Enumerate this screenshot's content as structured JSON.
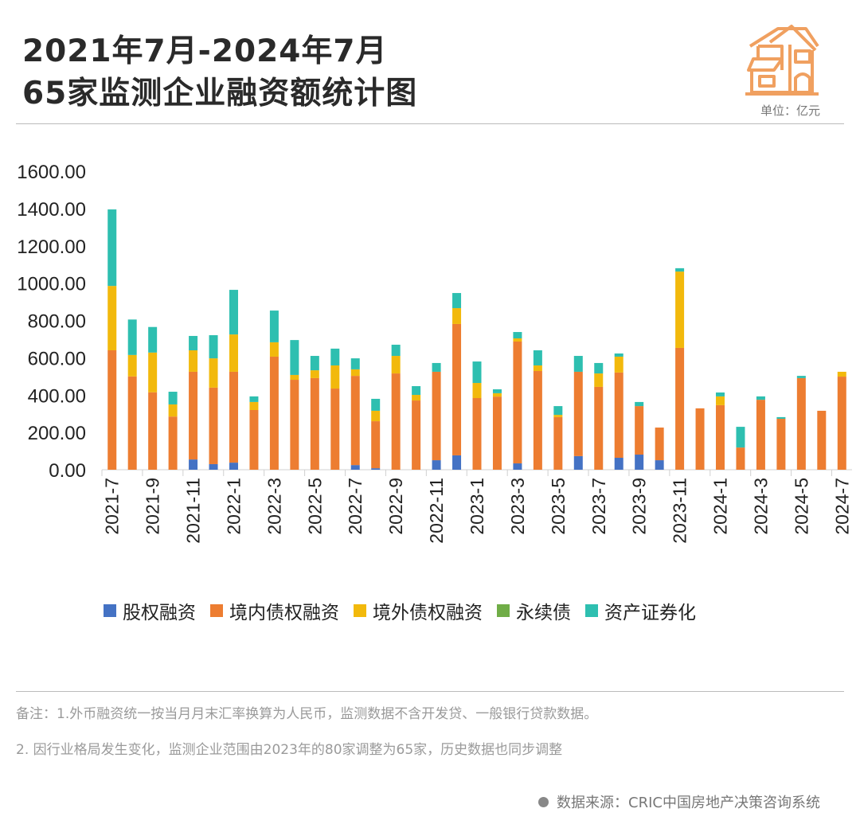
{
  "header": {
    "title_line1": "2021年7月-2024年7月",
    "title_line2": "65家监测企业融资额统计图",
    "unit": "单位：亿元",
    "logo_icon": "house-icon"
  },
  "notes": {
    "line1": "备注：1.外币融资统一按当月月末汇率换算为人民币，监测数据不含开发贷、一般银行贷款数据。",
    "line2": "2. 因行业格局发生变化，监测企业范围由2023年的80家调整为65家，历史数据也同步调整",
    "source": "数据来源：CRIC中国房地产决策咨询系统"
  },
  "chart_data": {
    "type": "bar",
    "stacked": true,
    "title": "2021年7月-2024年7月 65家监测企业融资额统计图",
    "xlabel": "",
    "ylabel": "",
    "unit": "亿元",
    "ylim": [
      0,
      1600
    ],
    "yticks": [
      "0.00",
      "200.00",
      "400.00",
      "600.00",
      "800.00",
      "1000.00",
      "1200.00",
      "1400.00",
      "1600.00"
    ],
    "grid": false,
    "legend_position": "bottom",
    "categories": [
      "2021-7",
      "2021-8",
      "2021-9",
      "2021-10",
      "2021-11",
      "2021-12",
      "2022-1",
      "2022-2",
      "2022-3",
      "2022-4",
      "2022-5",
      "2022-6",
      "2022-7",
      "2022-8",
      "2022-9",
      "2022-10",
      "2022-11",
      "2022-12",
      "2023-1",
      "2023-2",
      "2023-3",
      "2023-4",
      "2023-5",
      "2023-6",
      "2023-7",
      "2023-8",
      "2023-9",
      "2023-10",
      "2023-11",
      "2023-12",
      "2024-1",
      "2024-2",
      "2024-3",
      "2024-4",
      "2024-5",
      "2024-6",
      "2024-7"
    ],
    "xtick_labels": [
      "2021-7",
      "2021-9",
      "2021-11",
      "2022-1",
      "2022-3",
      "2022-5",
      "2022-7",
      "2022-9",
      "2022-11",
      "2023-1",
      "2023-3",
      "2023-5",
      "2023-7",
      "2023-9",
      "2023-11",
      "2024-1",
      "2024-3",
      "2024-5",
      "2024-7"
    ],
    "series": [
      {
        "name": "股权融资",
        "color": "#4472c4",
        "values": [
          0,
          0,
          0,
          0,
          55,
          30,
          38,
          0,
          0,
          0,
          0,
          0,
          25,
          8,
          0,
          0,
          51,
          77,
          0,
          0,
          34,
          0,
          0,
          73,
          0,
          64,
          81,
          51,
          0,
          0,
          0,
          0,
          0,
          0,
          0,
          0,
          0
        ]
      },
      {
        "name": "境内债权融资",
        "color": "#ed7d31",
        "values": [
          640,
          500,
          415,
          285,
          470,
          410,
          487,
          320,
          606,
          482,
          491,
          435,
          478,
          252,
          516,
          371,
          474,
          704,
          384,
          392,
          653,
          529,
          282,
          452,
          444,
          457,
          260,
          175,
          653,
          329,
          346,
          119,
          375,
          273,
          491,
          316,
          499
        ]
      },
      {
        "name": "境外债权融资",
        "color": "#f2b90c",
        "values": [
          345,
          115,
          213,
          65,
          115,
          157,
          200,
          43,
          77,
          26,
          42,
          124,
          35,
          56,
          94,
          30,
          0,
          85,
          81,
          18,
          17,
          30,
          12,
          0,
          72,
          85,
          0,
          0,
          409,
          0,
          47,
          0,
          0,
          0,
          0,
          0,
          26
        ]
      },
      {
        "name": "永续债",
        "color": "#70ad47",
        "values": [
          0,
          0,
          0,
          0,
          0,
          0,
          0,
          0,
          0,
          0,
          0,
          0,
          0,
          0,
          0,
          0,
          0,
          0,
          0,
          0,
          0,
          0,
          0,
          0,
          0,
          0,
          0,
          0,
          0,
          0,
          0,
          0,
          0,
          0,
          0,
          0,
          0
        ]
      },
      {
        "name": "资产证券化",
        "color": "#2ebfb0",
        "values": [
          410,
          190,
          137,
          68,
          77,
          124,
          239,
          30,
          170,
          187,
          77,
          90,
          59,
          64,
          60,
          47,
          47,
          81,
          115,
          21,
          34,
          81,
          47,
          85,
          56,
          17,
          22,
          0,
          18,
          0,
          21,
          111,
          18,
          9,
          12,
          0,
          0
        ]
      }
    ]
  }
}
